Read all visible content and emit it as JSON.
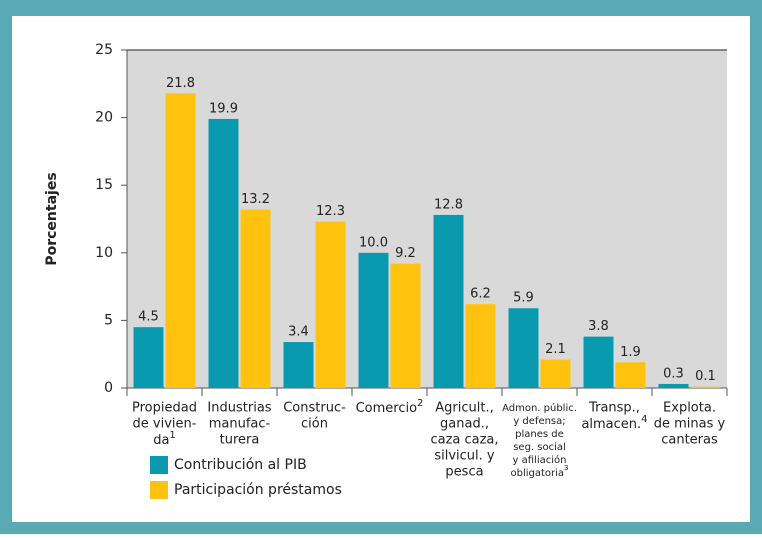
{
  "chart_data": {
    "type": "bar",
    "ylabel": "Porcentajes",
    "categories": [
      [
        "Propiedad",
        "de vivien-",
        "da"
      ],
      [
        "Industrias",
        "manufac-",
        "turera"
      ],
      [
        "Construc-",
        "ción"
      ],
      [
        "Comercio"
      ],
      [
        "Agricult.,",
        "ganad.,",
        "caza caza,",
        "silvicul. y",
        "pesca"
      ],
      [
        "Admon. públic.",
        "y defensa;",
        "planes de",
        "seg. social",
        "y afiliación",
        "obligatoria"
      ],
      [
        "Transp.,",
        "almacen."
      ],
      [
        "Explota.",
        "de minas y",
        "canteras"
      ]
    ],
    "category_superscripts": [
      "1",
      null,
      null,
      "2",
      null,
      "3",
      "4",
      null
    ],
    "series": [
      {
        "name": "Contribución al PIB",
        "color": "#0a9ab0",
        "values": [
          4.5,
          19.9,
          3.4,
          10.0,
          12.8,
          5.9,
          3.8,
          0.3
        ],
        "value_labels": [
          "4.5",
          "19.9",
          "3.4",
          "10.0",
          "12.8",
          "5.9",
          "3.8",
          "0.3"
        ]
      },
      {
        "name": "Participación préstamos",
        "color": "#ffc20e",
        "values": [
          21.8,
          13.2,
          12.3,
          9.2,
          6.2,
          2.1,
          1.9,
          0.1
        ],
        "value_labels": [
          "21.8",
          "13.2",
          "12.3",
          "9.2",
          "6.2",
          "2.1",
          "1.9",
          "0.1"
        ]
      }
    ],
    "ylim": [
      0,
      25
    ],
    "yticks": [
      0,
      5,
      10,
      15,
      20,
      25
    ]
  }
}
